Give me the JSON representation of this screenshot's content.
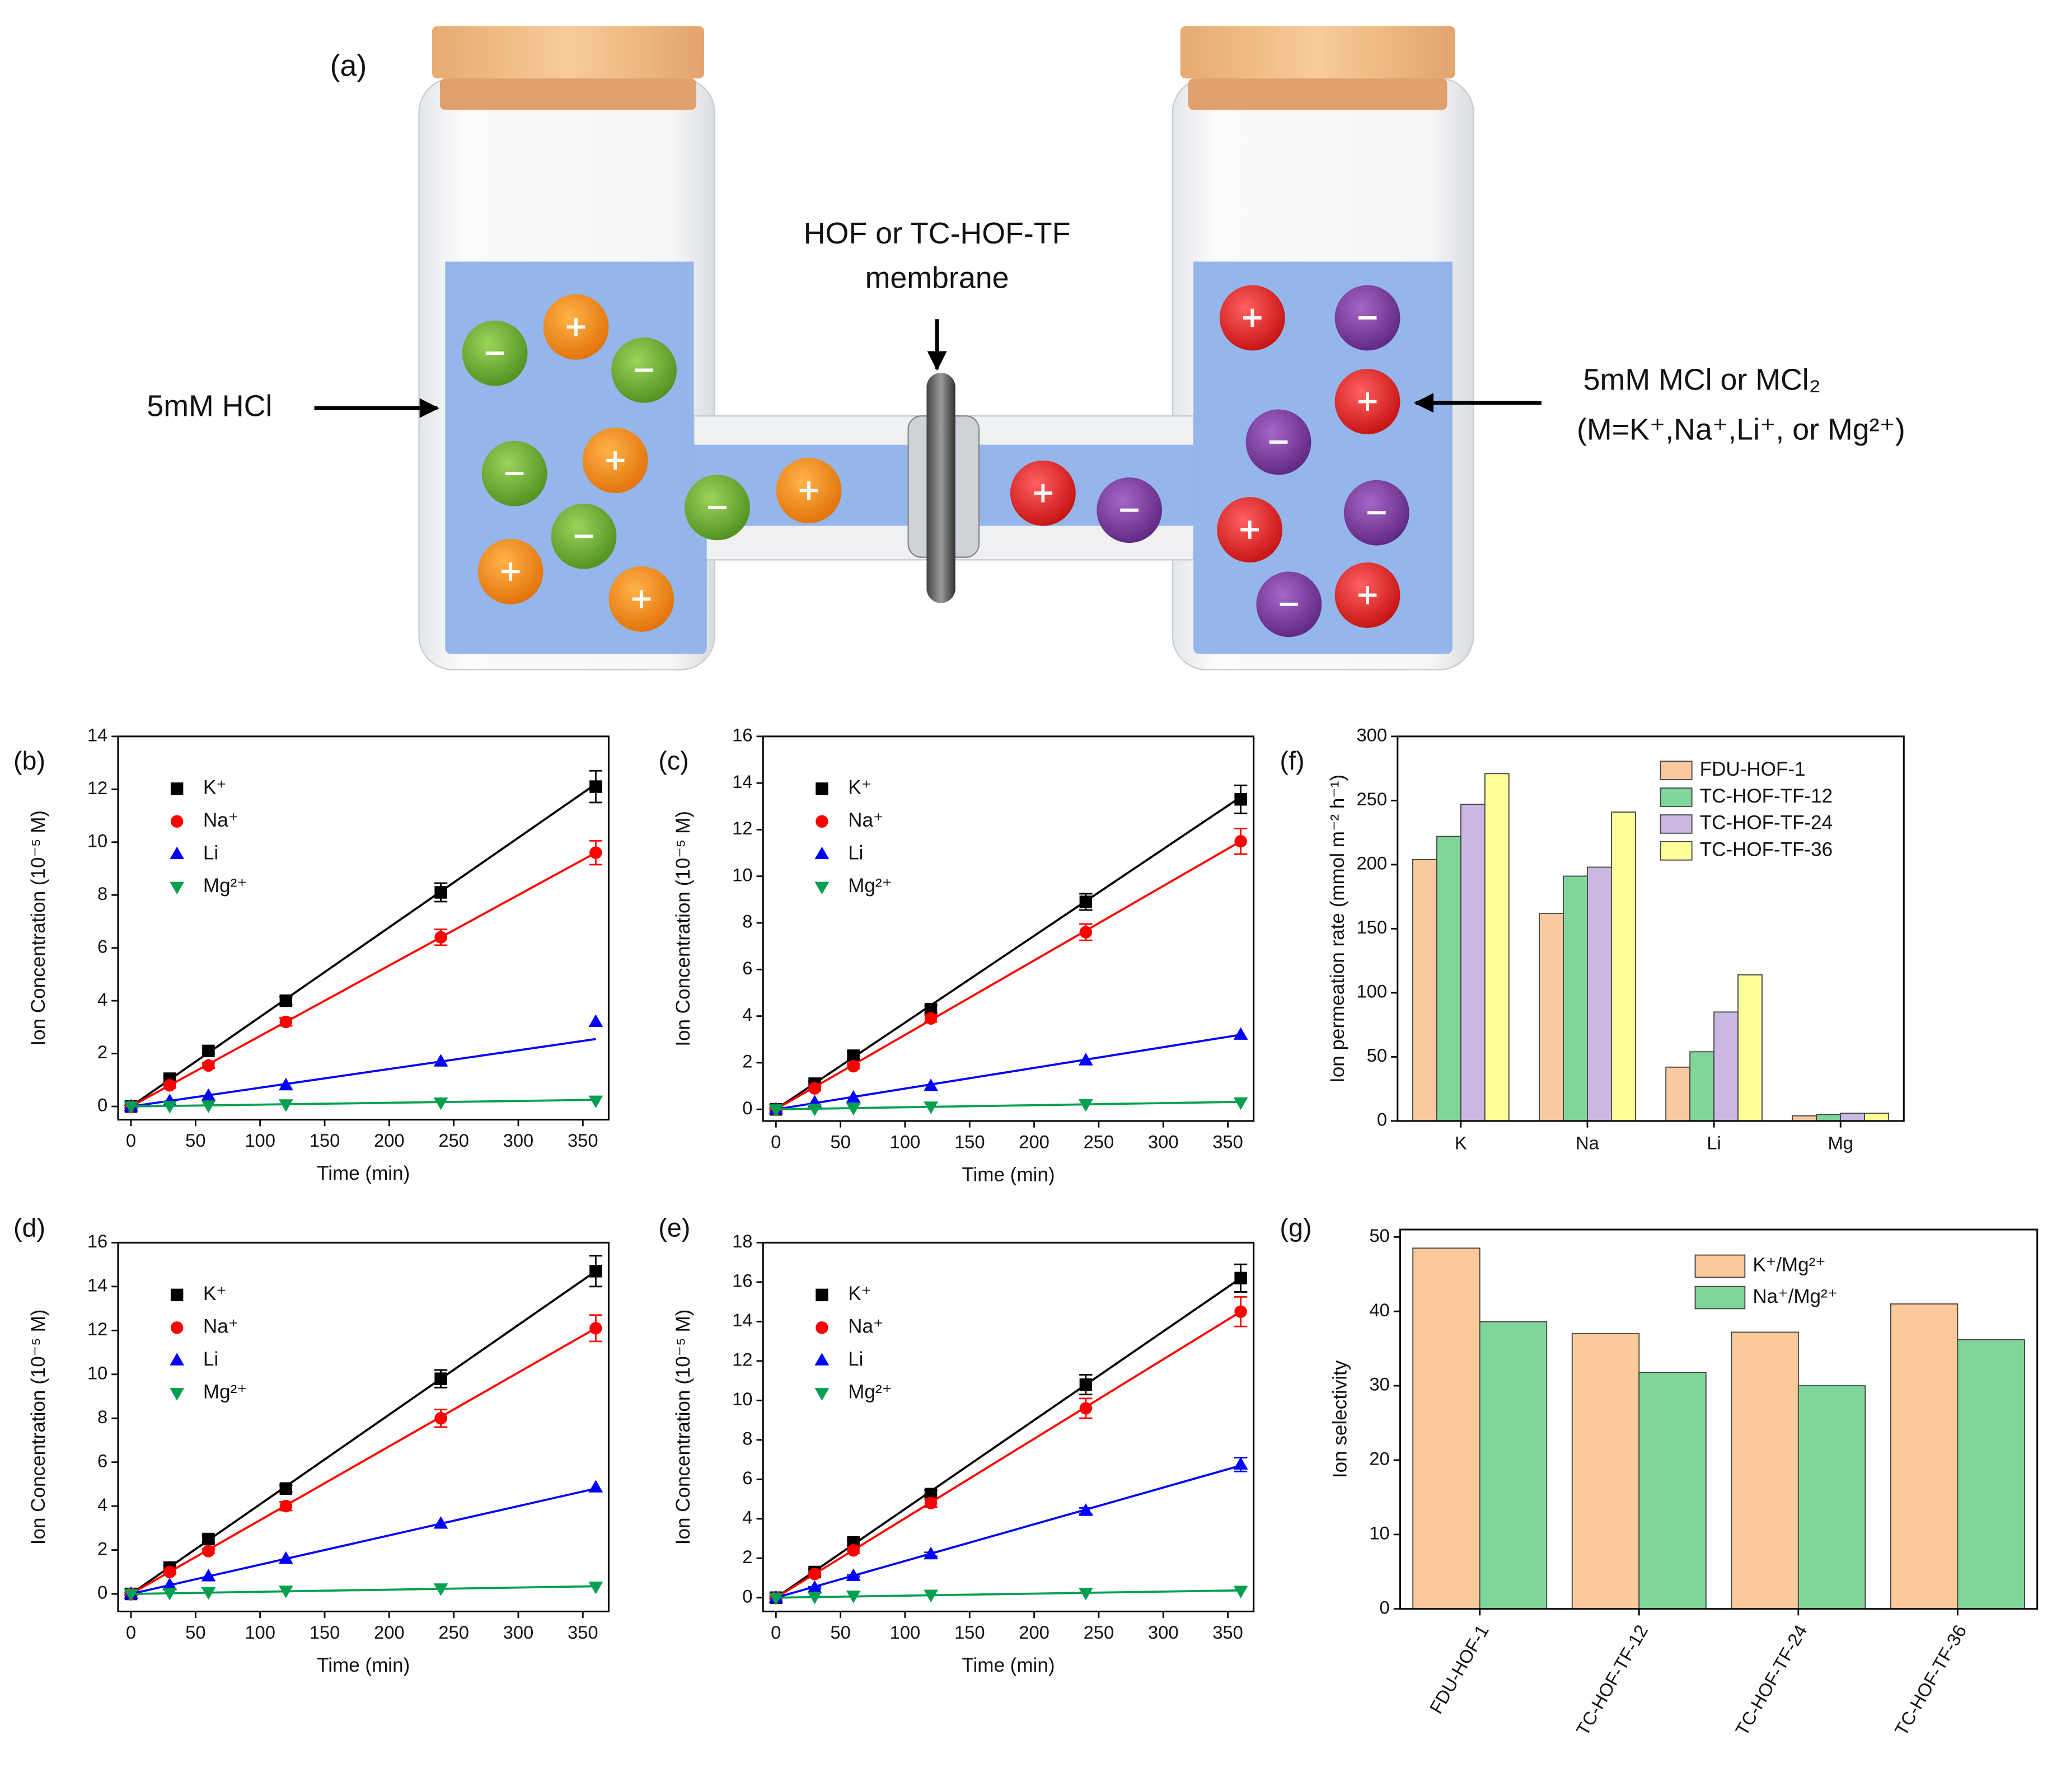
{
  "diagram": {
    "panel": "(a)",
    "membrane_label": [
      "HOF or TC-HOF-TF",
      "membrane"
    ],
    "left_label": "5mM HCl",
    "right_label": [
      "5mM MCl or MCl₂",
      "(M=K⁺,Na⁺,Li⁺, or Mg²⁺)"
    ]
  },
  "chart_data": [
    {
      "type": "line",
      "panel": "(b)",
      "x_label": "Time (min)",
      "y_label": "Ion Concentration (10⁻⁵ M)",
      "x": [
        0,
        30,
        60,
        120,
        240,
        360
      ],
      "xlim": [
        -10,
        370
      ],
      "xticks": [
        0,
        50,
        100,
        150,
        200,
        250,
        300,
        350
      ],
      "ylim": [
        -0.5,
        14
      ],
      "yticks": [
        0,
        2,
        4,
        6,
        8,
        10,
        12,
        14
      ],
      "legend": "upper left",
      "fit_x": [
        0,
        360
      ],
      "series": [
        {
          "name": "K⁺",
          "color": "#000000",
          "marker": "square",
          "values": [
            0,
            1.05,
            2.1,
            4.0,
            8.1,
            12.1
          ],
          "errors": [
            0.05,
            0.1,
            0.1,
            0.15,
            0.35,
            0.6
          ],
          "fit": [
            0,
            12.2
          ]
        },
        {
          "name": "Na⁺",
          "color": "#ff0000",
          "marker": "circle",
          "values": [
            0,
            0.8,
            1.55,
            3.2,
            6.4,
            9.6
          ],
          "errors": [
            0.05,
            0.1,
            0.1,
            0.15,
            0.3,
            0.45
          ],
          "fit": [
            0,
            9.6
          ]
        },
        {
          "name": "Li",
          "color": "#0000ff",
          "marker": "triangle-up",
          "values": [
            0,
            0.2,
            0.4,
            0.8,
            1.7,
            3.2
          ],
          "fit": [
            0,
            2.55
          ]
        },
        {
          "name": "Mg²⁺",
          "color": "#00a050",
          "marker": "triangle-down",
          "values": [
            0,
            0.02,
            0.04,
            0.08,
            0.15,
            0.22
          ],
          "fit": [
            0,
            0.25
          ]
        }
      ]
    },
    {
      "type": "line",
      "panel": "(c)",
      "x_label": "Time (min)",
      "y_label": "Ion Concentration (10⁻⁵ M)",
      "x": [
        0,
        30,
        60,
        120,
        240,
        360
      ],
      "xlim": [
        -10,
        370
      ],
      "xticks": [
        0,
        50,
        100,
        150,
        200,
        250,
        300,
        350
      ],
      "ylim": [
        -0.5,
        16
      ],
      "yticks": [
        0,
        2,
        4,
        6,
        8,
        10,
        12,
        14,
        16
      ],
      "legend": "upper left",
      "fit_x": [
        0,
        360
      ],
      "series": [
        {
          "name": "K⁺",
          "color": "#000000",
          "marker": "square",
          "values": [
            0,
            1.1,
            2.3,
            4.3,
            8.9,
            13.3
          ],
          "errors": [
            0.05,
            0.1,
            0.15,
            0.15,
            0.35,
            0.6
          ],
          "fit": [
            0,
            13.4
          ]
        },
        {
          "name": "Na⁺",
          "color": "#ff0000",
          "marker": "circle",
          "values": [
            0,
            0.9,
            1.85,
            3.9,
            7.6,
            11.5
          ],
          "errors": [
            0.05,
            0.1,
            0.1,
            0.15,
            0.35,
            0.55
          ],
          "fit": [
            0,
            11.5
          ]
        },
        {
          "name": "Li",
          "color": "#0000ff",
          "marker": "triangle-up",
          "values": [
            0,
            0.3,
            0.5,
            1.0,
            2.1,
            3.2
          ],
          "fit": [
            0,
            3.2
          ]
        },
        {
          "name": "Mg²⁺",
          "color": "#00a050",
          "marker": "triangle-down",
          "values": [
            0,
            0.03,
            0.06,
            0.12,
            0.22,
            0.3
          ],
          "fit": [
            0,
            0.32
          ]
        }
      ]
    },
    {
      "type": "line",
      "panel": "(d)",
      "x_label": "Time (min)",
      "y_label": "Ion Concentration (10⁻⁵ M)",
      "x": [
        0,
        30,
        60,
        120,
        240,
        360
      ],
      "xlim": [
        -10,
        370
      ],
      "xticks": [
        0,
        50,
        100,
        150,
        200,
        250,
        300,
        350
      ],
      "ylim": [
        -0.8,
        16
      ],
      "yticks": [
        0,
        2,
        4,
        6,
        8,
        10,
        12,
        14,
        16
      ],
      "legend": "upper left",
      "fit_x": [
        0,
        360
      ],
      "series": [
        {
          "name": "K⁺",
          "color": "#000000",
          "marker": "square",
          "values": [
            0,
            1.2,
            2.5,
            4.8,
            9.8,
            14.7
          ],
          "errors": [
            0.05,
            0.1,
            0.15,
            0.15,
            0.4,
            0.7
          ],
          "fit": [
            0,
            14.7
          ]
        },
        {
          "name": "Na⁺",
          "color": "#ff0000",
          "marker": "circle",
          "values": [
            0,
            1.0,
            1.95,
            4.0,
            8.0,
            12.1
          ],
          "errors": [
            0.05,
            0.1,
            0.1,
            0.2,
            0.4,
            0.6
          ],
          "fit": [
            0,
            12.1
          ]
        },
        {
          "name": "Li",
          "color": "#0000ff",
          "marker": "triangle-up",
          "values": [
            0,
            0.4,
            0.8,
            1.6,
            3.2,
            4.85
          ],
          "fit": [
            0,
            4.8
          ]
        },
        {
          "name": "Mg²⁺",
          "color": "#00a050",
          "marker": "triangle-down",
          "values": [
            0,
            0.05,
            0.08,
            0.15,
            0.25,
            0.33
          ],
          "fit": [
            0,
            0.35
          ]
        }
      ]
    },
    {
      "type": "line",
      "panel": "(e)",
      "x_label": "Time (min)",
      "y_label": "Ion Concentration (10⁻⁵ M)",
      "x": [
        0,
        30,
        60,
        120,
        240,
        360
      ],
      "xlim": [
        -10,
        370
      ],
      "xticks": [
        0,
        50,
        100,
        150,
        200,
        250,
        300,
        350
      ],
      "ylim": [
        -0.7,
        18
      ],
      "yticks": [
        0,
        2,
        4,
        6,
        8,
        10,
        12,
        14,
        16,
        18
      ],
      "legend": "upper left",
      "fit_x": [
        0,
        360
      ],
      "series": [
        {
          "name": "K⁺",
          "color": "#000000",
          "marker": "square",
          "values": [
            0,
            1.3,
            2.8,
            5.25,
            10.8,
            16.2
          ],
          "errors": [
            0.05,
            0.15,
            0.15,
            0.2,
            0.5,
            0.7
          ],
          "fit": [
            0,
            16.2
          ]
        },
        {
          "name": "Na⁺",
          "color": "#ff0000",
          "marker": "circle",
          "values": [
            0,
            1.2,
            2.4,
            4.8,
            9.6,
            14.5
          ],
          "errors": [
            0.05,
            0.1,
            0.15,
            0.2,
            0.5,
            0.75
          ],
          "fit": [
            0,
            14.5
          ]
        },
        {
          "name": "Li",
          "color": "#0000ff",
          "marker": "triangle-up",
          "values": [
            0,
            0.5,
            1.1,
            2.2,
            4.4,
            6.75
          ],
          "errors": [
            0,
            0.05,
            0.05,
            0.1,
            0.15,
            0.35
          ],
          "fit": [
            0,
            6.7
          ]
        },
        {
          "name": "Mg²⁺",
          "color": "#00a050",
          "marker": "triangle-down",
          "values": [
            0,
            0.05,
            0.1,
            0.15,
            0.25,
            0.35
          ],
          "fit": [
            0,
            0.37
          ]
        }
      ]
    },
    {
      "type": "bar",
      "panel": "(f)",
      "y_label": "Ion permeation rate (mmol m⁻² h⁻¹)",
      "categories": [
        "K",
        "Na",
        "Li",
        "Mg"
      ],
      "ylim": [
        0,
        300
      ],
      "yticks": [
        0,
        50,
        100,
        150,
        200,
        250,
        300
      ],
      "legend": "upper right",
      "series": [
        {
          "name": "FDU-HOF-1",
          "color": "#fbc9a0",
          "values": [
            204,
            162,
            42,
            4
          ]
        },
        {
          "name": "TC-HOF-TF-12",
          "color": "#7fd69a",
          "values": [
            222,
            191,
            54,
            5
          ]
        },
        {
          "name": "TC-HOF-TF-24",
          "color": "#cbb8e2",
          "values": [
            247,
            198,
            85,
            6
          ]
        },
        {
          "name": "TC-HOF-TF-36",
          "color": "#ffff99",
          "values": [
            271,
            241,
            114,
            6
          ]
        }
      ]
    },
    {
      "type": "bar",
      "panel": "(g)",
      "y_label": "Ion selectivity",
      "categories": [
        "FDU-HOF-1",
        "TC-HOF-TF-12",
        "TC-HOF-TF-24",
        "TC-HOF-TF-36"
      ],
      "ylim": [
        0,
        51
      ],
      "yticks": [
        0,
        10,
        20,
        30,
        40,
        50
      ],
      "legend": "upper center",
      "series": [
        {
          "name": "K⁺/Mg²⁺",
          "color": "#fcc99b",
          "values": [
            48.5,
            37,
            37.2,
            41
          ]
        },
        {
          "name": "Na⁺/Mg²⁺",
          "color": "#7fd69a",
          "values": [
            38.6,
            31.8,
            30,
            36.2
          ]
        }
      ]
    }
  ]
}
